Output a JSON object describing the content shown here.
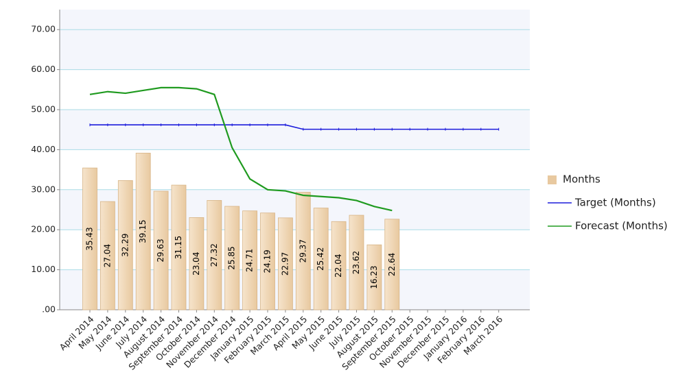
{
  "chart_data": {
    "type": "bar-line",
    "categories": [
      "April 2014",
      "May 2014",
      "June 2014",
      "July 2014",
      "August 2014",
      "September 2014",
      "October 2014",
      "November 2014",
      "December 2014",
      "January 2015",
      "February 2015",
      "March 2015",
      "April 2015",
      "May 2015",
      "June 2015",
      "July 2015",
      "August 2015",
      "September 2015",
      "October 2015",
      "November 2015",
      "December 2015",
      "January 2016",
      "February 2016",
      "March 2016"
    ],
    "series": [
      {
        "name": "Months",
        "type": "bar",
        "color": "#e8c9a0",
        "values": [
          35.43,
          27.04,
          32.29,
          39.15,
          29.63,
          31.15,
          23.04,
          27.32,
          25.85,
          24.71,
          24.19,
          22.97,
          29.37,
          25.42,
          22.04,
          23.62,
          16.23,
          22.64,
          null,
          null,
          null,
          null,
          null,
          null
        ]
      },
      {
        "name": "Target (Months)",
        "type": "line",
        "color": "#1a1adb",
        "values": [
          46.2,
          46.2,
          46.2,
          46.2,
          46.2,
          46.2,
          46.2,
          46.2,
          46.2,
          46.2,
          46.2,
          46.2,
          45.1,
          45.1,
          45.1,
          45.1,
          45.1,
          45.1,
          45.1,
          45.1,
          45.1,
          45.1,
          45.1,
          45.1
        ]
      },
      {
        "name": "Forecast (Months)",
        "type": "line",
        "color": "#1f9a1f",
        "values": [
          53.8,
          54.5,
          54.1,
          54.8,
          55.5,
          55.5,
          55.2,
          53.8,
          40.5,
          32.7,
          30.0,
          29.7,
          28.6,
          28.3,
          28.0,
          27.3,
          25.8,
          24.8,
          null,
          null,
          null,
          null,
          null,
          null
        ]
      }
    ],
    "ylim": [
      0,
      75
    ],
    "yticks": [
      {
        "value": 0,
        "label": ".00"
      },
      {
        "value": 10,
        "label": "10.00"
      },
      {
        "value": 20,
        "label": "20.00"
      },
      {
        "value": 30,
        "label": "30.00"
      },
      {
        "value": 40,
        "label": "40.00"
      },
      {
        "value": 50,
        "label": "50.00"
      },
      {
        "value": 60,
        "label": "60.00"
      },
      {
        "value": 70,
        "label": "70.00"
      }
    ],
    "grid": true,
    "legend": "right"
  }
}
